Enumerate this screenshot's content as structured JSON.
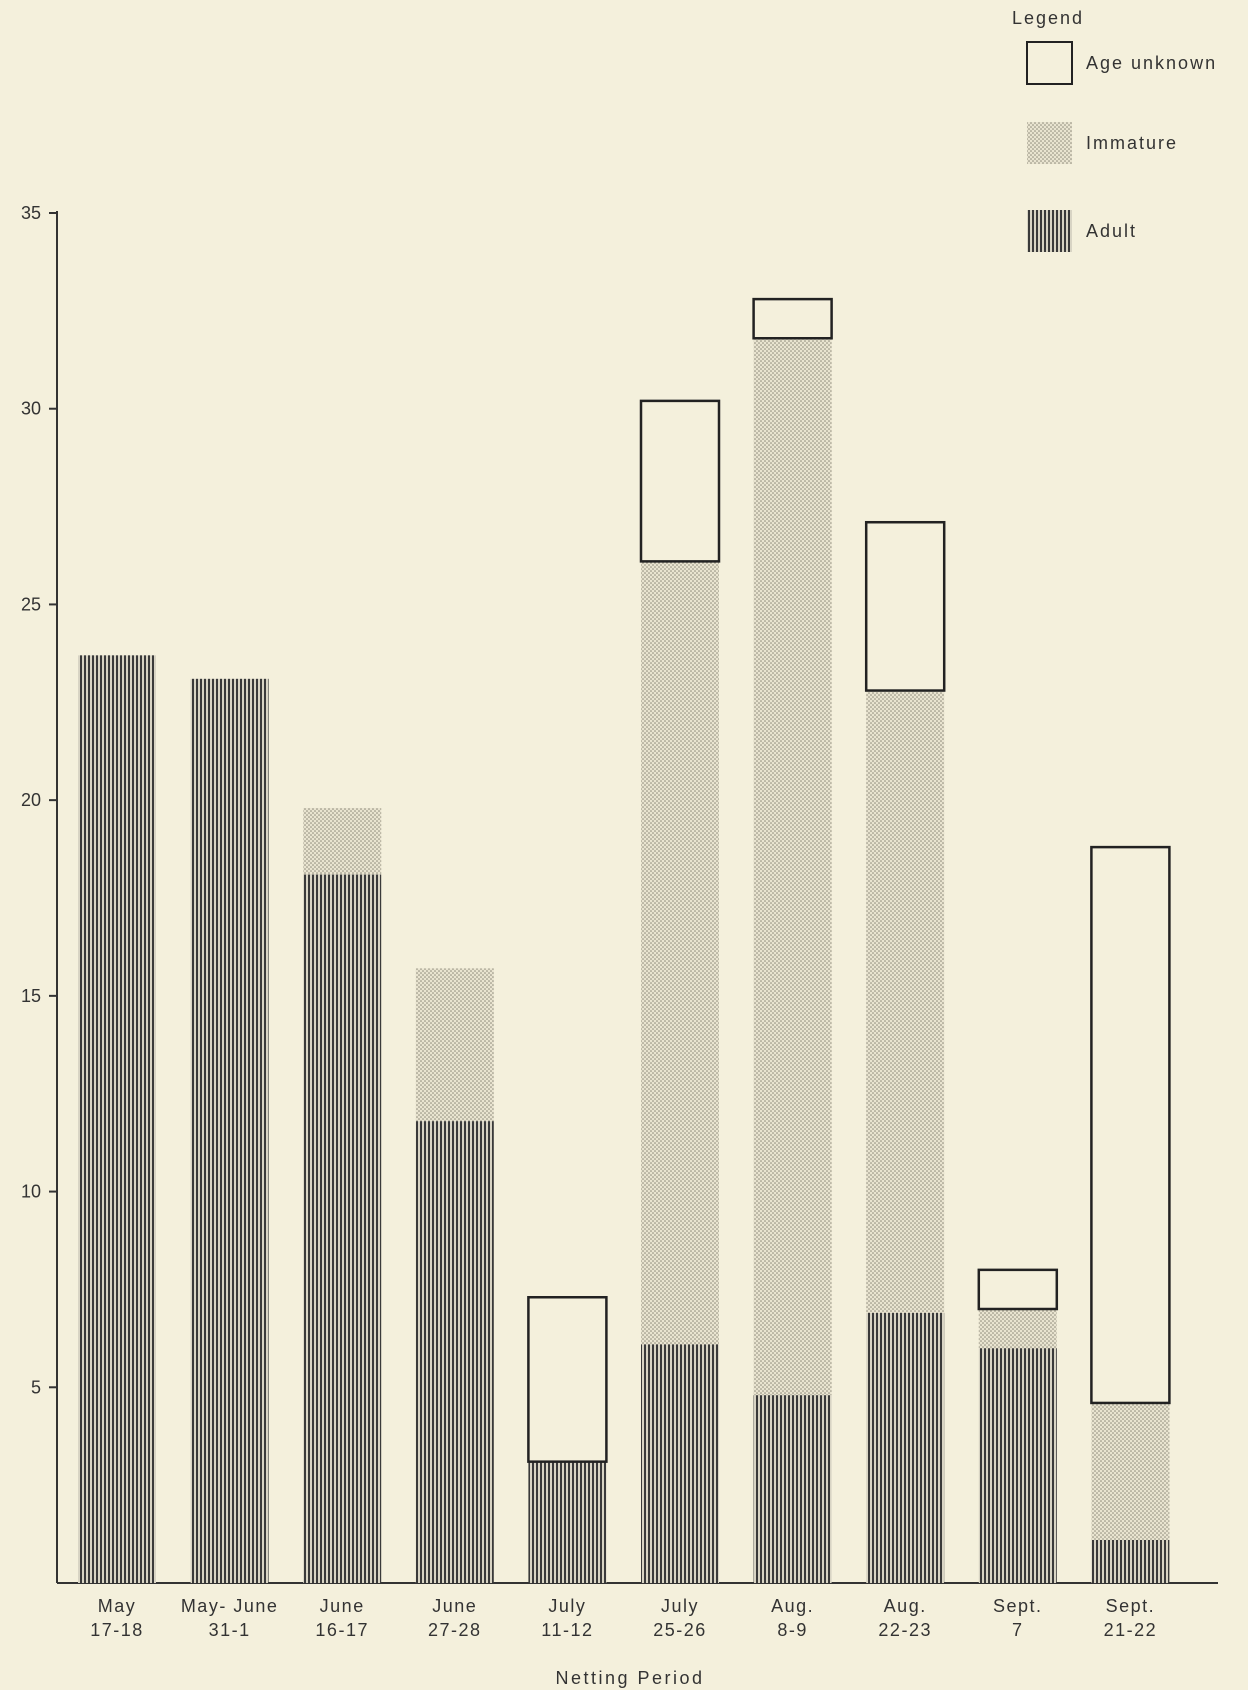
{
  "chart_data": {
    "type": "bar",
    "stacked": true,
    "xlabel": "Netting Period",
    "ylabel": "",
    "ylim": [
      0,
      35
    ],
    "yticks": [
      5,
      10,
      15,
      20,
      25,
      30,
      35
    ],
    "grid": false,
    "legend_title": "Legend",
    "legend_position": "top-right",
    "categories": [
      [
        "May",
        "17-18"
      ],
      [
        "May- June",
        "31-1"
      ],
      [
        "June",
        "16-17"
      ],
      [
        "June",
        "27-28"
      ],
      [
        "July",
        "11-12"
      ],
      [
        "July",
        "25-26"
      ],
      [
        "Aug.",
        "8-9"
      ],
      [
        "Aug.",
        "22-23"
      ],
      [
        "Sept.",
        "7"
      ],
      [
        "Sept.",
        "21-22"
      ]
    ],
    "series": [
      {
        "name": "Adult",
        "pattern": "vertical-lines",
        "values": [
          23.7,
          23.1,
          18.1,
          11.8,
          3.1,
          6.1,
          4.8,
          6.9,
          6.0,
          1.1
        ]
      },
      {
        "name": "Immature",
        "pattern": "stipple",
        "values": [
          0,
          0,
          1.7,
          3.9,
          0,
          20.0,
          27.0,
          15.9,
          1.0,
          3.5
        ]
      },
      {
        "name": "Age unknown",
        "pattern": "outline",
        "values": [
          0,
          0,
          0,
          0,
          4.2,
          4.1,
          1.0,
          4.3,
          1.0,
          14.2
        ]
      }
    ]
  }
}
